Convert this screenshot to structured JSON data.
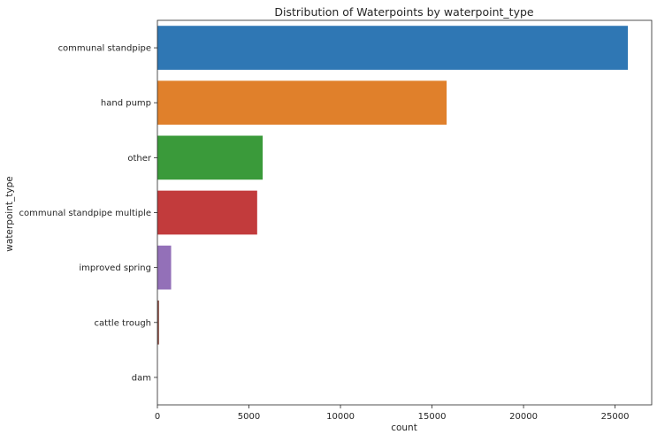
{
  "chart_data": {
    "type": "bar",
    "orientation": "horizontal",
    "title": "Distribution of Waterpoints by waterpoint_type",
    "xlabel": "count",
    "ylabel": "waterpoint_type",
    "xlim": [
      0,
      27000
    ],
    "xticks": [
      0,
      5000,
      10000,
      15000,
      20000,
      25000
    ],
    "grid": false,
    "categories": [
      "communal standpipe",
      "hand pump",
      "other",
      "communal standpipe multiple",
      "improved spring",
      "cattle trough",
      "dam"
    ],
    "values": [
      25700,
      15800,
      5750,
      5450,
      750,
      90,
      5
    ],
    "colors": [
      "#2f77b4",
      "#e0802b",
      "#3a9a3a",
      "#c23b3c",
      "#9370b8",
      "#8b5147",
      "#d67ac0"
    ]
  }
}
